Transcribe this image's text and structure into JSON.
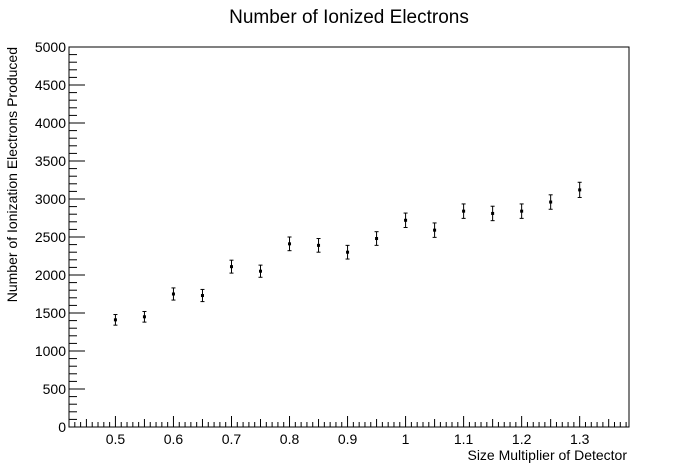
{
  "chart_data": {
    "type": "scatter",
    "title": "Number of Ionized Electrons",
    "xlabel": "Size Multiplier of Detector",
    "ylabel": "Number of Ionization Electrons Produced",
    "xlim": [
      0.42,
      1.385
    ],
    "ylim": [
      0,
      5000
    ],
    "x_ticks": [
      "0.5",
      "0.6",
      "0.7",
      "0.8",
      "0.9",
      "1",
      "1.1",
      "1.2",
      "1.3"
    ],
    "y_ticks": [
      "0",
      "500",
      "1000",
      "1500",
      "2000",
      "2500",
      "3000",
      "3500",
      "4000",
      "4500",
      "5000"
    ],
    "grid": false,
    "x": [
      0.5,
      0.55,
      0.6,
      0.65,
      0.7,
      0.75,
      0.8,
      0.85,
      0.9,
      0.95,
      1.0,
      1.05,
      1.1,
      1.15,
      1.2,
      1.25,
      1.3
    ],
    "y": [
      1410,
      1450,
      1750,
      1730,
      2110,
      2050,
      2410,
      2390,
      2300,
      2480,
      2720,
      2590,
      2840,
      2810,
      2840,
      2960,
      3120
    ],
    "yerr": [
      70,
      70,
      80,
      80,
      85,
      80,
      90,
      90,
      90,
      90,
      95,
      95,
      95,
      95,
      95,
      95,
      100
    ]
  }
}
